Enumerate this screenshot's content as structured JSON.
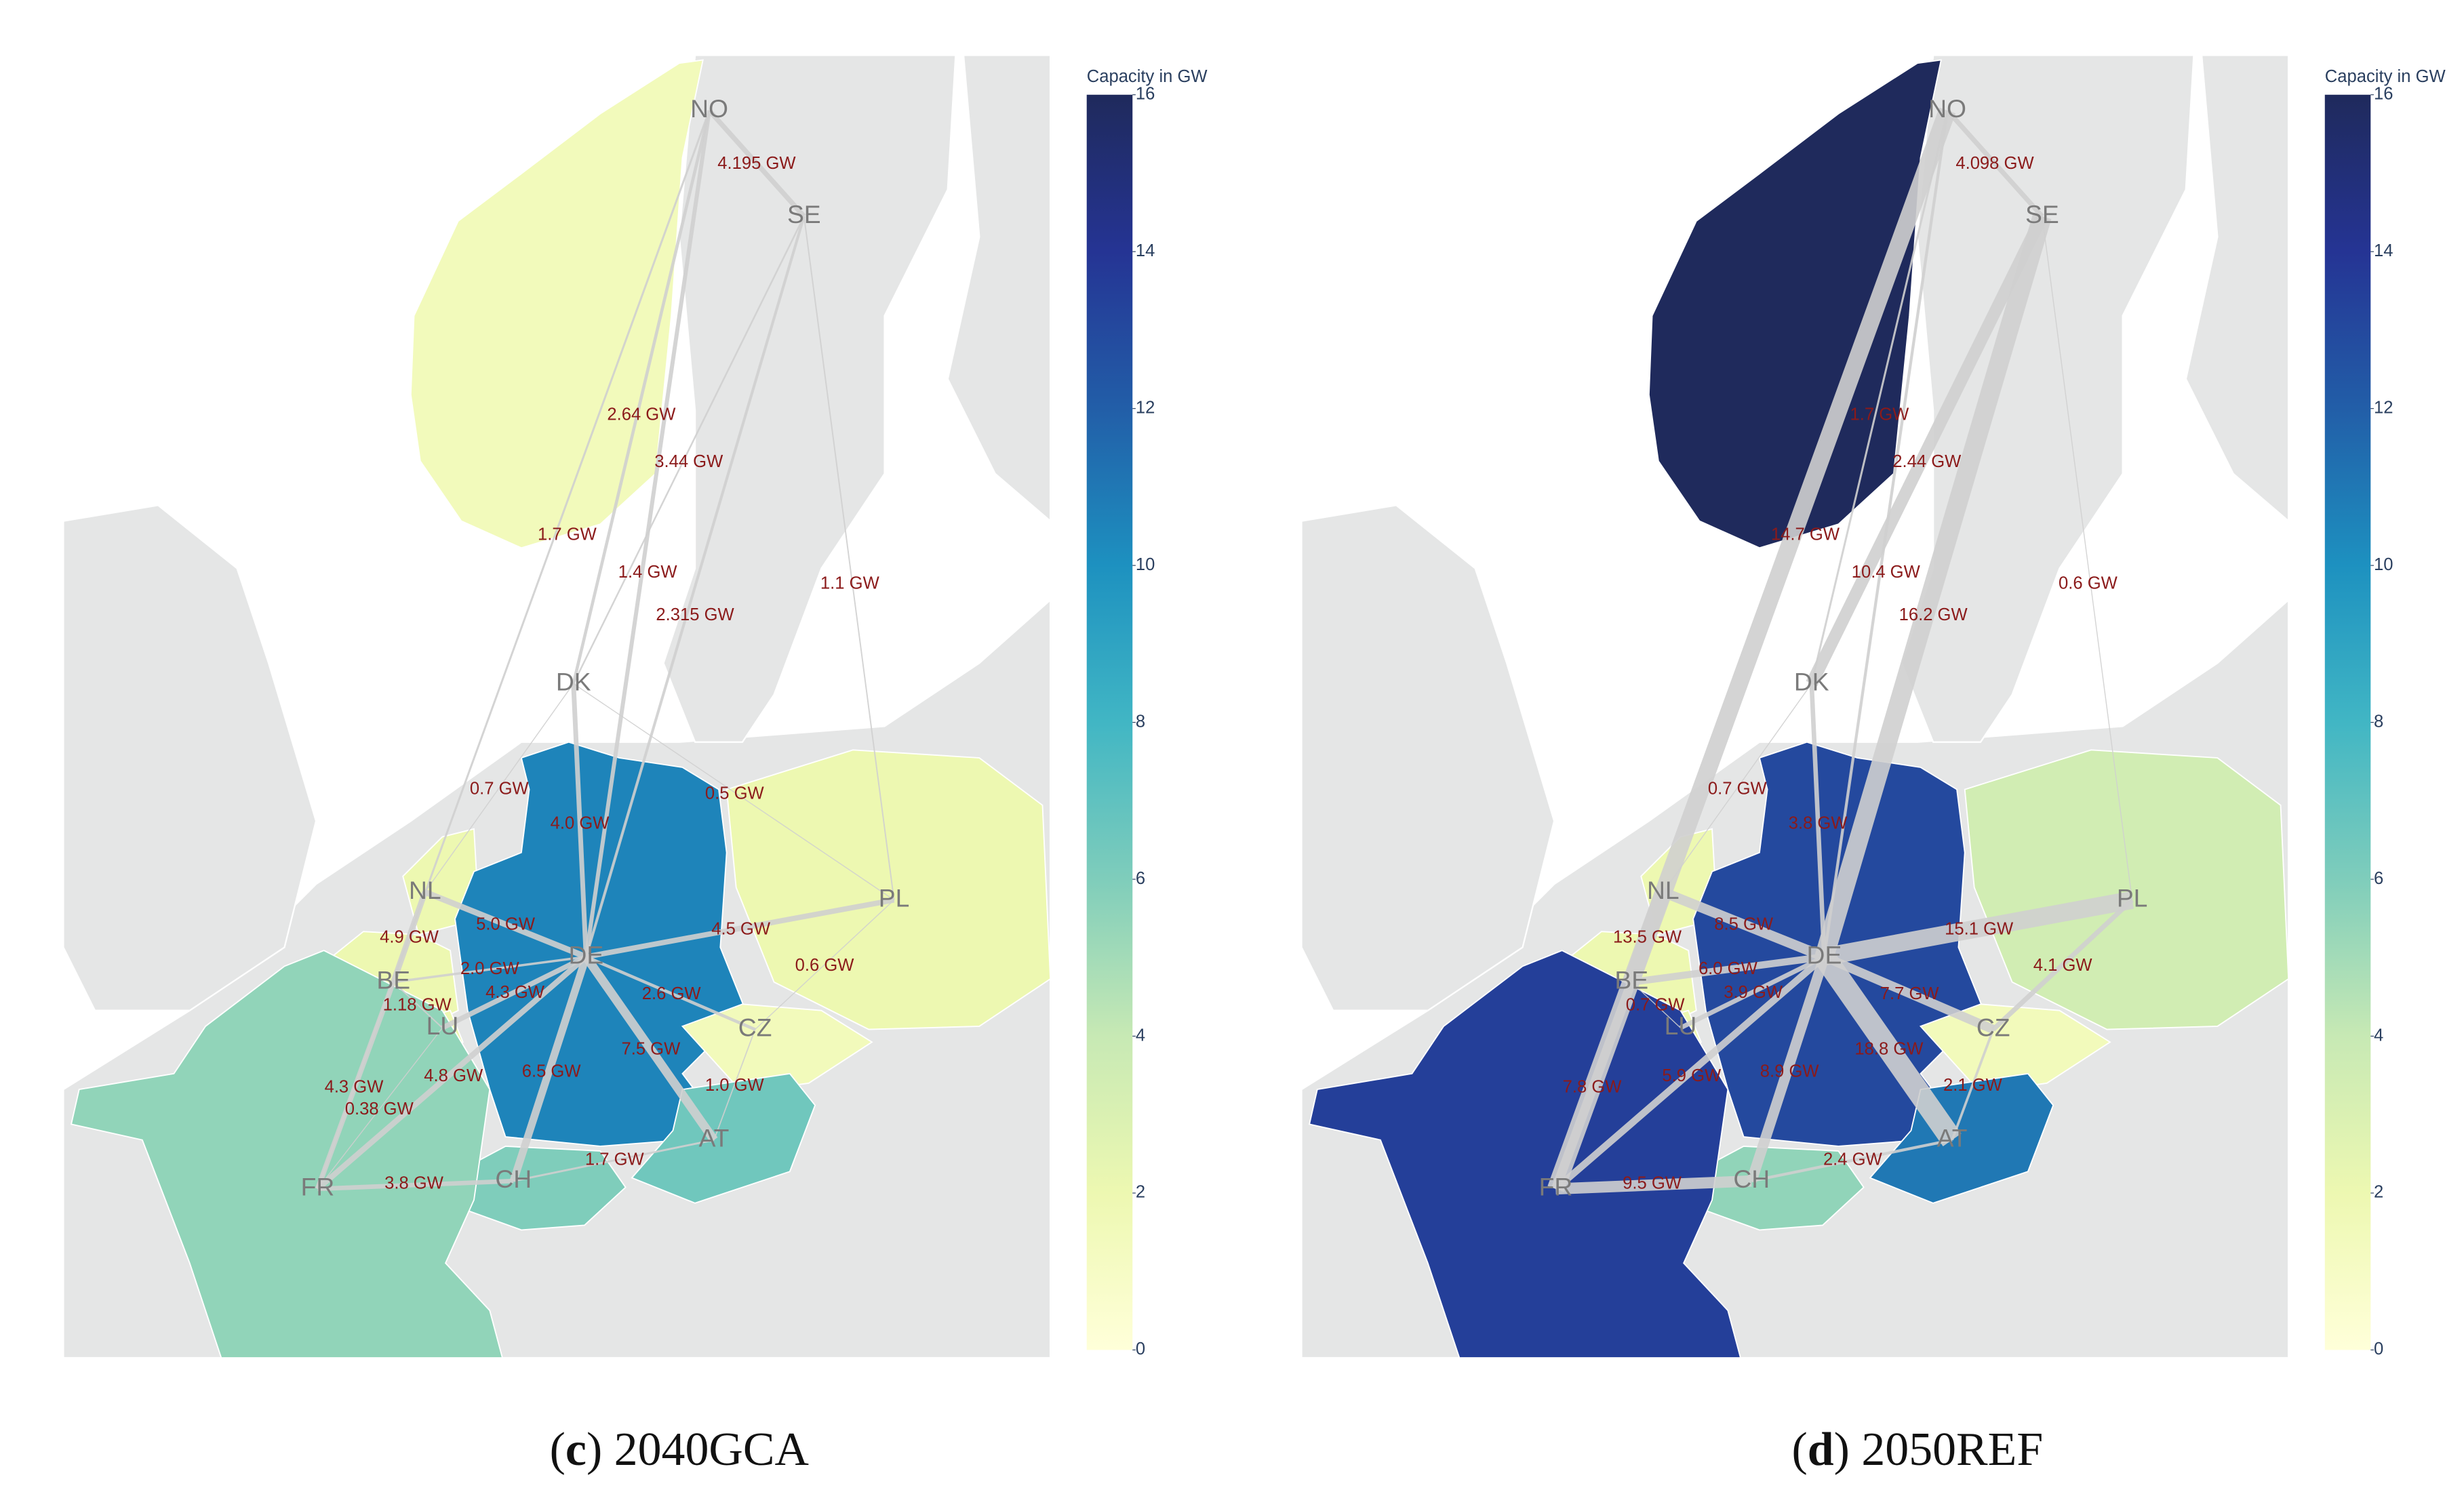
{
  "colorbar": {
    "title": "Capacity in GW",
    "clim": [
      0,
      16
    ],
    "ticks": [
      0,
      2,
      4,
      6,
      8,
      10,
      12,
      14,
      16
    ],
    "colorscale": [
      "#ffffd9",
      "#edf8b1",
      "#c7e9b4",
      "#7fcdbb",
      "#41b6c4",
      "#1d91c0",
      "#225ea8",
      "#253494",
      "#1f2a5c"
    ]
  },
  "maps": [
    {
      "caption": [
        "(",
        "c",
        ") 2040GCA"
      ],
      "nodes": [
        {
          "label": "NO",
          "capacity": 1.5
        },
        {
          "label": "SE"
        },
        {
          "label": "DK"
        },
        {
          "label": "NL",
          "capacity": 2
        },
        {
          "label": "BE",
          "capacity": 2
        },
        {
          "label": "LU",
          "capacity": 2
        },
        {
          "label": "DE",
          "capacity": 10.5
        },
        {
          "label": "PL",
          "capacity": 2
        },
        {
          "label": "CZ",
          "capacity": 1.5
        },
        {
          "label": "AT",
          "capacity": 6.5
        },
        {
          "label": "CH",
          "capacity": 6
        },
        {
          "label": "FR",
          "capacity": 5.5
        }
      ],
      "flows": [
        {
          "from": "NO",
          "to": "SE",
          "value": 4.195,
          "label": "4.195 GW"
        },
        {
          "from": "NO",
          "to": "DK",
          "value": 2.64,
          "label": "2.64 GW"
        },
        {
          "from": "NO",
          "to": "DE",
          "value": 3.44,
          "label": "3.44 GW"
        },
        {
          "from": "NO",
          "to": "FR",
          "value": 1.7,
          "label": "1.7 GW"
        },
        {
          "from": "SE",
          "to": "DK",
          "value": 1.4,
          "label": "1.4 GW"
        },
        {
          "from": "SE",
          "to": "DE",
          "value": 2.315,
          "label": "2.315 GW"
        },
        {
          "from": "SE",
          "to": "PL",
          "value": 1.1,
          "label": "1.1 GW"
        },
        {
          "from": "DK",
          "to": "NL",
          "value": 0.7,
          "label": "0.7 GW"
        },
        {
          "from": "DK",
          "to": "DE",
          "value": 4.0,
          "label": "4.0 GW"
        },
        {
          "from": "DK",
          "to": "PL",
          "value": 0.5,
          "label": "0.5 GW"
        },
        {
          "from": "NL",
          "to": "DE",
          "value": 5.0,
          "label": "5.0 GW"
        },
        {
          "from": "NL",
          "to": "BE",
          "value": 4.9,
          "label": "4.9 GW"
        },
        {
          "from": "BE",
          "to": "DE",
          "value": 2.0,
          "label": "2.0 GW"
        },
        {
          "from": "LU",
          "to": "DE",
          "value": 4.3,
          "label": "4.3 GW"
        },
        {
          "from": "BE",
          "to": "LU",
          "value": 1.18,
          "label": "1.18 GW"
        },
        {
          "from": "DE",
          "to": "PL",
          "value": 4.5,
          "label": "4.5 GW"
        },
        {
          "from": "PL",
          "to": "CZ",
          "value": 0.6,
          "label": "0.6 GW"
        },
        {
          "from": "DE",
          "to": "CZ",
          "value": 2.6,
          "label": "2.6 GW"
        },
        {
          "from": "DE",
          "to": "AT",
          "value": 7.5,
          "label": "7.5 GW"
        },
        {
          "from": "CZ",
          "to": "AT",
          "value": 1.0,
          "label": "1.0 GW"
        },
        {
          "from": "DE",
          "to": "CH",
          "value": 6.5,
          "label": "6.5 GW"
        },
        {
          "from": "DE",
          "to": "FR",
          "value": 4.8,
          "label": "4.8 GW"
        },
        {
          "from": "BE",
          "to": "FR",
          "value": 4.3,
          "label": "4.3 GW"
        },
        {
          "from": "LU",
          "to": "FR",
          "value": 0.38,
          "label": "0.38 GW"
        },
        {
          "from": "FR",
          "to": "CH",
          "value": 3.8,
          "label": "3.8 GW"
        },
        {
          "from": "CH",
          "to": "AT",
          "value": 1.7,
          "label": "1.7 GW"
        }
      ]
    },
    {
      "caption": [
        "(",
        "d",
        ") 2050REF"
      ],
      "nodes": [
        {
          "label": "NO",
          "capacity": 16
        },
        {
          "label": "SE"
        },
        {
          "label": "DK"
        },
        {
          "label": "NL",
          "capacity": 2
        },
        {
          "label": "BE",
          "capacity": 2
        },
        {
          "label": "LU",
          "capacity": 2
        },
        {
          "label": "DE",
          "capacity": 13
        },
        {
          "label": "PL",
          "capacity": 3.5
        },
        {
          "label": "CZ",
          "capacity": 1.5
        },
        {
          "label": "AT",
          "capacity": 11
        },
        {
          "label": "CH",
          "capacity": 5.5
        },
        {
          "label": "FR",
          "capacity": 13.5
        }
      ],
      "flows": [
        {
          "from": "NO",
          "to": "SE",
          "value": 4.098,
          "label": "4.098 GW"
        },
        {
          "from": "NO",
          "to": "DK",
          "value": 1.7,
          "label": "1.7 GW"
        },
        {
          "from": "NO",
          "to": "DE",
          "value": 2.44,
          "label": "2.44 GW"
        },
        {
          "from": "NO",
          "to": "FR",
          "value": 14.7,
          "label": "14.7 GW"
        },
        {
          "from": "SE",
          "to": "DK",
          "value": 10.4,
          "label": "10.4 GW"
        },
        {
          "from": "SE",
          "to": "DE",
          "value": 16.2,
          "label": "16.2 GW"
        },
        {
          "from": "SE",
          "to": "PL",
          "value": 0.6,
          "label": "0.6 GW"
        },
        {
          "from": "DK",
          "to": "NL",
          "value": 0.7,
          "label": "0.7 GW"
        },
        {
          "from": "DK",
          "to": "DE",
          "value": 3.8,
          "label": "3.8 GW"
        },
        {
          "from": "NL",
          "to": "DE",
          "value": 8.5,
          "label": "8.5 GW"
        },
        {
          "from": "NL",
          "to": "BE",
          "value": 13.5,
          "label": "13.5 GW"
        },
        {
          "from": "BE",
          "to": "DE",
          "value": 6.0,
          "label": "6.0 GW"
        },
        {
          "from": "LU",
          "to": "DE",
          "value": 3.9,
          "label": "3.9 GW"
        },
        {
          "from": "BE",
          "to": "LU",
          "value": 0.7,
          "label": "0.7 GW"
        },
        {
          "from": "DE",
          "to": "PL",
          "value": 15.1,
          "label": "15.1 GW"
        },
        {
          "from": "PL",
          "to": "CZ",
          "value": 4.1,
          "label": "4.1 GW"
        },
        {
          "from": "DE",
          "to": "CZ",
          "value": 7.7,
          "label": "7.7 GW"
        },
        {
          "from": "DE",
          "to": "AT",
          "value": 18.8,
          "label": "18.8 GW"
        },
        {
          "from": "CZ",
          "to": "AT",
          "value": 2.1,
          "label": "2.1 GW"
        },
        {
          "from": "DE",
          "to": "CH",
          "value": 8.9,
          "label": "8.9 GW"
        },
        {
          "from": "DE",
          "to": "FR",
          "value": 5.9,
          "label": "5.9 GW"
        },
        {
          "from": "BE",
          "to": "FR",
          "value": 7.8,
          "label": "7.8 GW"
        },
        {
          "from": "FR",
          "to": "CH",
          "value": 9.5,
          "label": "9.5 GW"
        },
        {
          "from": "CH",
          "to": "AT",
          "value": 2.4,
          "label": "2.4 GW"
        }
      ]
    }
  ]
}
